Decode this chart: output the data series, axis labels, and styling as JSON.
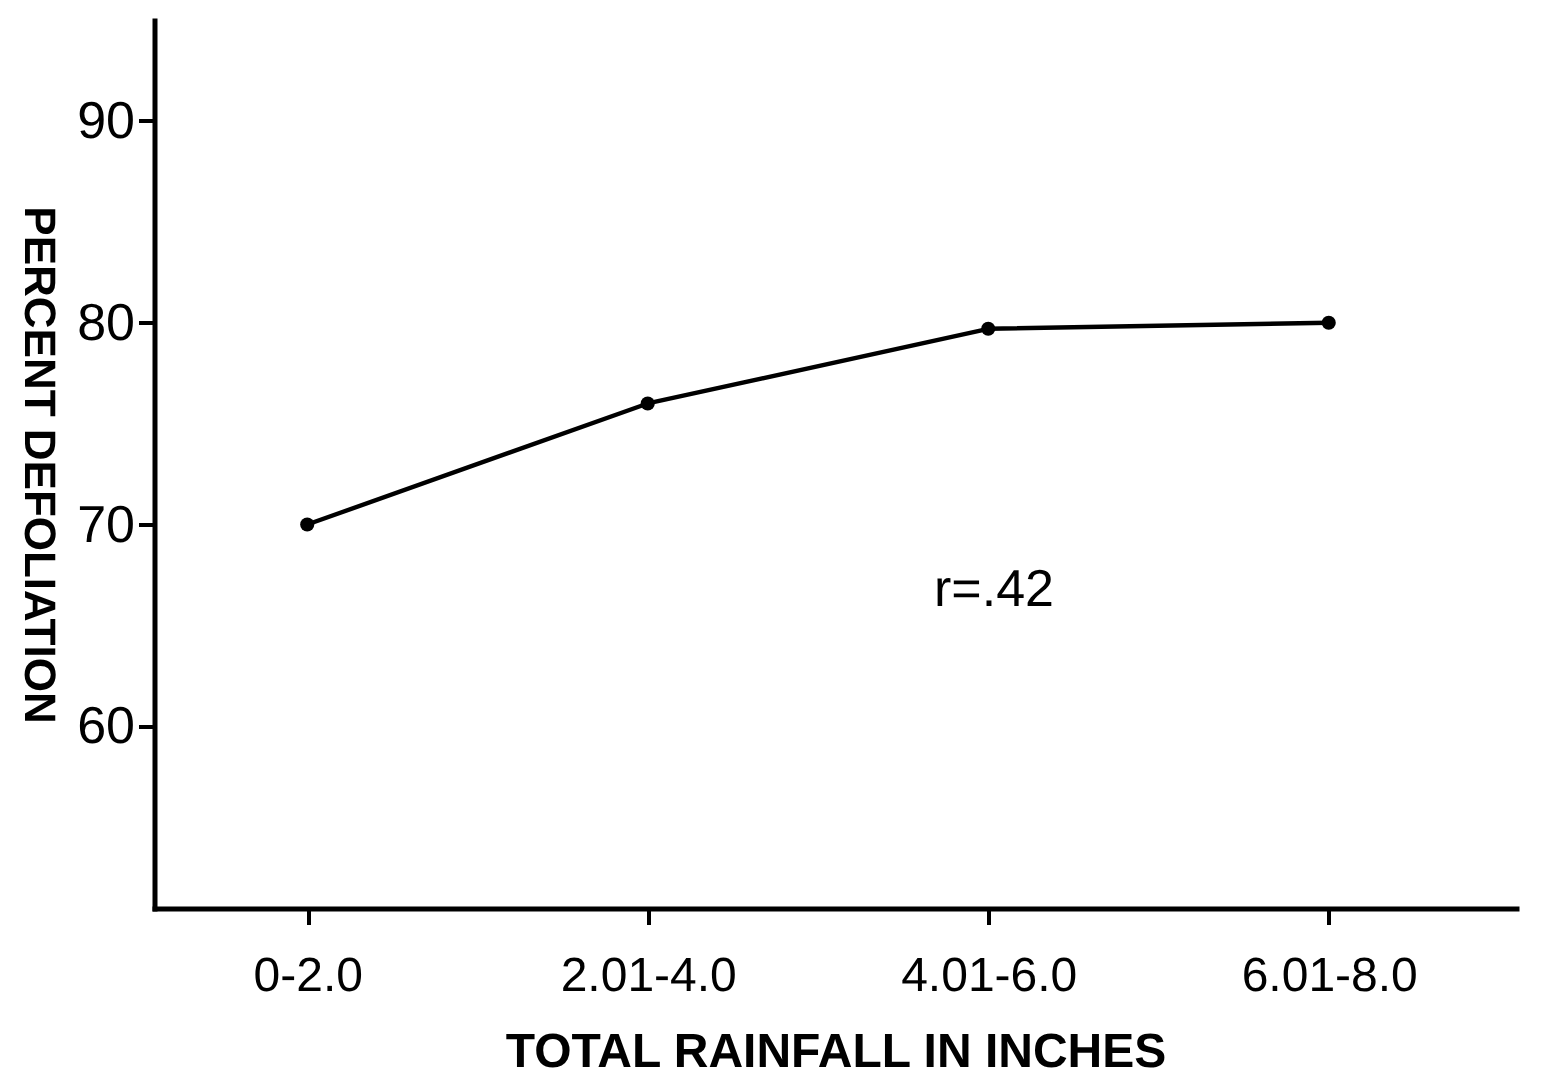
{
  "chart_data": {
    "type": "line",
    "xlabel": "TOTAL RAINFALL IN INCHES",
    "ylabel": "PERCENT DEFOLIATION",
    "categories": [
      "0-2.0",
      "2.01-4.0",
      "4.01-6.0",
      "6.01-8.0"
    ],
    "series": [
      {
        "color": "#000000",
        "values": [
          70,
          76,
          79.7,
          80
        ]
      }
    ],
    "ylim": [
      51,
      95
    ],
    "yticks": [
      60,
      70,
      80,
      90
    ],
    "annotations": [
      "r=.42"
    ],
    "marker": "circle",
    "line_style": "solid",
    "grid": false,
    "legend": false
  }
}
